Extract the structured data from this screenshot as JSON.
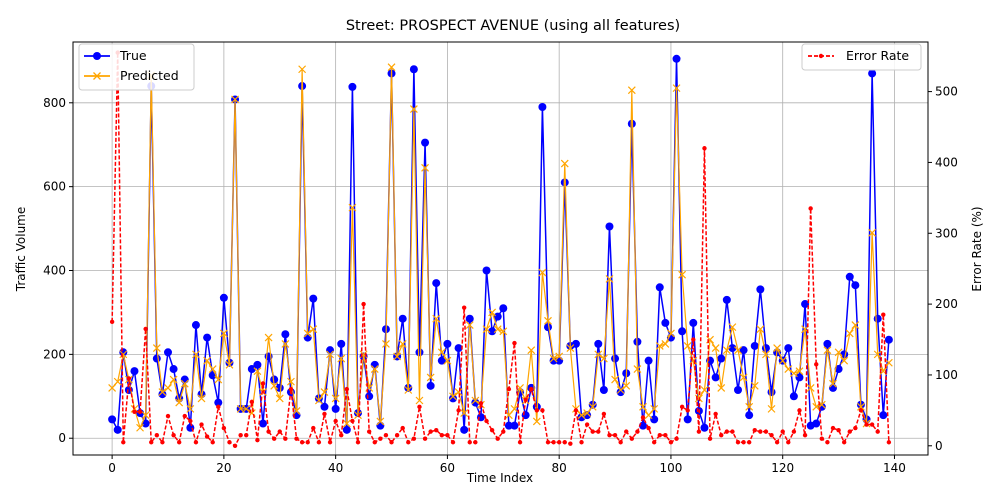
{
  "chart_data": {
    "type": "line",
    "title": "Street: PROSPECT AVENUE (using all features)",
    "xlabel": "Time Index",
    "ylabel": "Traffic Volume",
    "ylabel_right": "Error Rate (%)",
    "xlim": [
      -7,
      146
    ],
    "ylim": [
      -40,
      945
    ],
    "ylim_right": [
      -13,
      570
    ],
    "x_ticks": [
      0,
      20,
      40,
      60,
      80,
      100,
      120,
      140
    ],
    "y_ticks": [
      0,
      200,
      400,
      600,
      800
    ],
    "y_ticks_right": [
      0,
      100,
      200,
      300,
      400,
      500
    ],
    "grid": true,
    "legend_left_placement": "upper-left",
    "legend_right_placement": "upper-right",
    "colors": {
      "true": "#0000ff",
      "predicted": "#ffa500",
      "error": "#ff0000"
    },
    "series": [
      {
        "name": "True",
        "axis": "left",
        "values": [
          45,
          20,
          205,
          115,
          160,
          60,
          35,
          840,
          190,
          105,
          205,
          165,
          95,
          140,
          25,
          270,
          105,
          240,
          150,
          85,
          335,
          180,
          808,
          70,
          70,
          165,
          175,
          35,
          195,
          140,
          120,
          248,
          110,
          55,
          840,
          240,
          333,
          95,
          75,
          210,
          70,
          225,
          20,
          838,
          60,
          195,
          100,
          175,
          30,
          260,
          870,
          195,
          285,
          120,
          880,
          205,
          705,
          125,
          370,
          185,
          225,
          95,
          215,
          20,
          285,
          85,
          50,
          400,
          255,
          290,
          310,
          30,
          30,
          110,
          55,
          120,
          75,
          790,
          265,
          185,
          185,
          610,
          220,
          225,
          50,
          55,
          80,
          225,
          115,
          505,
          190,
          110,
          155,
          750,
          230,
          30,
          185,
          45,
          360,
          275,
          240,
          905,
          255,
          45,
          275,
          65,
          25,
          185,
          145,
          190,
          330,
          215,
          115,
          210,
          55,
          220,
          355,
          215,
          110,
          205,
          185,
          215,
          100,
          145,
          320,
          30,
          35,
          75,
          225,
          120,
          165,
          200,
          385,
          365,
          80,
          45,
          870,
          285,
          55,
          235
        ]
      },
      {
        "name": "Predicted",
        "axis": "left",
        "values": [
          120,
          135,
          200,
          140,
          70,
          25,
          55,
          865,
          215,
          110,
          120,
          140,
          85,
          130,
          70,
          200,
          95,
          185,
          165,
          140,
          250,
          175,
          808,
          70,
          70,
          60,
          160,
          110,
          240,
          125,
          95,
          225,
          135,
          65,
          880,
          250,
          260,
          90,
          110,
          200,
          95,
          190,
          35,
          550,
          55,
          200,
          120,
          165,
          40,
          225,
          885,
          195,
          225,
          115,
          785,
          90,
          645,
          145,
          285,
          205,
          185,
          100,
          110,
          60,
          270,
          90,
          80,
          260,
          300,
          260,
          255,
          55,
          70,
          120,
          90,
          210,
          40,
          395,
          280,
          190,
          195,
          655,
          215,
          70,
          55,
          60,
          75,
          200,
          190,
          380,
          140,
          115,
          125,
          830,
          165,
          75,
          55,
          70,
          220,
          225,
          250,
          835,
          390,
          220,
          185,
          95,
          115,
          235,
          215,
          120,
          210,
          265,
          210,
          145,
          75,
          125,
          260,
          200,
          70,
          215,
          185,
          165,
          155,
          160,
          260,
          120,
          75,
          80,
          210,
          130,
          205,
          185,
          250,
          270,
          75,
          35,
          490,
          200,
          160,
          180
        ]
      },
      {
        "name": "Error Rate",
        "axis": "right",
        "values": [
          175,
          555,
          5,
          95,
          48,
          48,
          165,
          5,
          15,
          5,
          42,
          15,
          5,
          42,
          35,
          5,
          30,
          13,
          5,
          55,
          25,
          5,
          0,
          15,
          15,
          62,
          8,
          88,
          20,
          10,
          20,
          10,
          80,
          10,
          5,
          5,
          25,
          5,
          45,
          5,
          35,
          15,
          80,
          35,
          5,
          200,
          20,
          5,
          10,
          15,
          5,
          15,
          25,
          5,
          10,
          55,
          10,
          20,
          22,
          15,
          15,
          5,
          50,
          195,
          5,
          5,
          60,
          35,
          22,
          10,
          20,
          80,
          145,
          5,
          65,
          80,
          50,
          50,
          5,
          5,
          5,
          5,
          3,
          50,
          5,
          30,
          20,
          20,
          45,
          15,
          15,
          5,
          20,
          10,
          20,
          40,
          25,
          5,
          15,
          15,
          5,
          10,
          55,
          50,
          150,
          20,
          420,
          10,
          45,
          15,
          20,
          20,
          5,
          5,
          5,
          22,
          20,
          20,
          15,
          5,
          20,
          5,
          20,
          50,
          15,
          335,
          115,
          10,
          5,
          25,
          22,
          5,
          20,
          25,
          50,
          30,
          30,
          20,
          185,
          5
        ]
      }
    ]
  }
}
